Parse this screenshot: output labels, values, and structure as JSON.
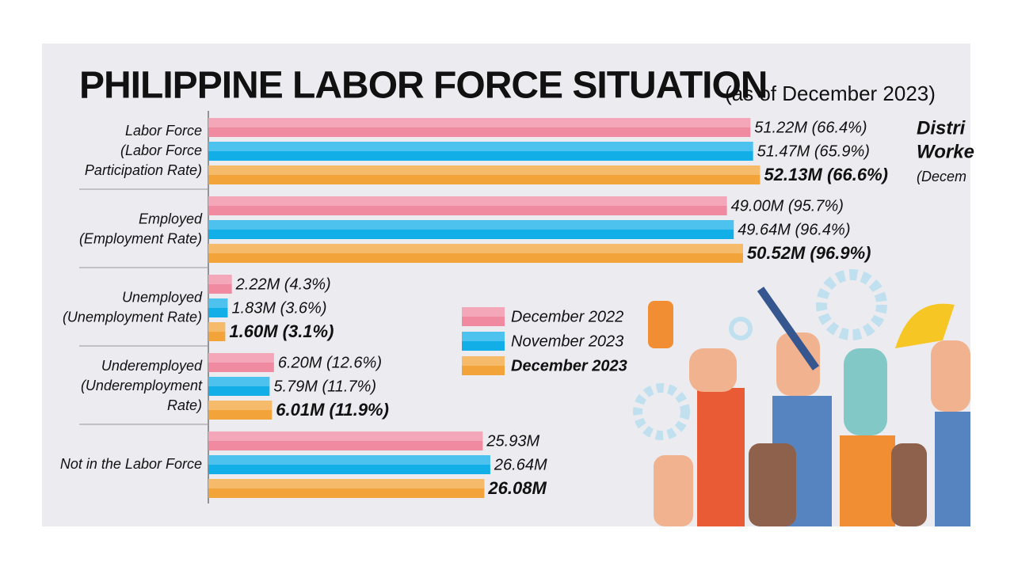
{
  "chart_data": {
    "type": "hbar",
    "title": "PHILIPPINE LABOR FORCE SITUATION",
    "subtitle": "(as of December 2023)",
    "side_heading": [
      "Distri",
      "Worke",
      "(Decem"
    ],
    "categories": [
      [
        "Labor Force",
        "(Labor Force",
        "Participation Rate)"
      ],
      [
        "Employed",
        "(Employment Rate)"
      ],
      [
        "Unemployed",
        "(Unemployment Rate)"
      ],
      [
        "Underemployed",
        "(Underemployment",
        "Rate)"
      ],
      [
        "Not in the Labor Force"
      ]
    ],
    "series": [
      {
        "name": "December 2022",
        "color": "#f08aa0",
        "values": [
          51.22,
          49.0,
          2.22,
          6.2,
          25.93
        ],
        "value_labels": [
          "51.22M (66.4%)",
          "49.00M (95.7%)",
          "2.22M (4.3%)",
          "6.20M (12.6%)",
          "25.93M"
        ]
      },
      {
        "name": "November 2023",
        "color": "#12aee8",
        "values": [
          51.47,
          49.64,
          1.83,
          5.79,
          26.64
        ],
        "value_labels": [
          "51.47M (65.9%)",
          "49.64M (96.4%)",
          "1.83M (3.6%)",
          "5.79M (11.7%)",
          "26.64M"
        ]
      },
      {
        "name": "December 2023",
        "color": "#f2a43a",
        "values": [
          52.13,
          50.52,
          1.6,
          6.01,
          26.08
        ],
        "value_labels": [
          "52.13M (66.6%)",
          "50.52M (96.9%)",
          "1.60M (3.1%)",
          "6.01M (11.9%)",
          "26.08M"
        ]
      }
    ]
  }
}
